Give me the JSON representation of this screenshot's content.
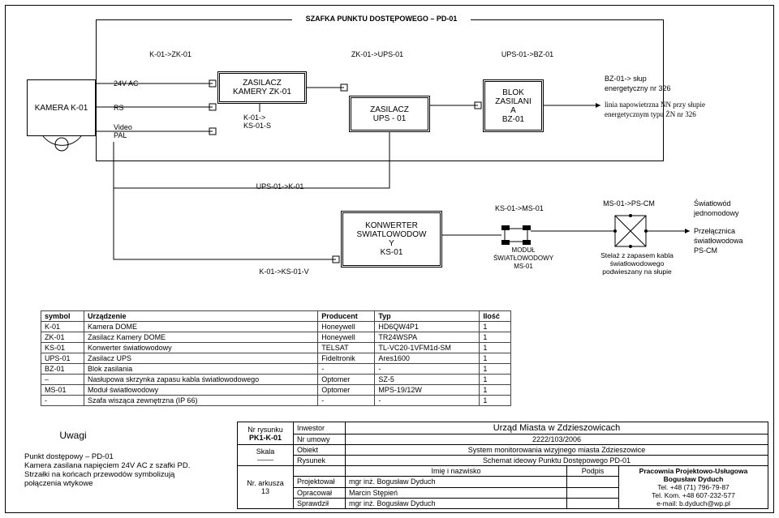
{
  "outer_title": "SZAFKA PUNKTU DOSTĘPOWEGO – PD-01",
  "flows": {
    "a": "K-01->ZK-01",
    "b": "ZK-01->UPS-01",
    "c": "UPS-01->BZ-01",
    "d": "UPS-01->K-01",
    "e": "K-01->KS-01-V",
    "f": "KS-01->MS-01",
    "g": "MS-01->PS-CM",
    "zk_ks": "K-01->\nKS-01-S"
  },
  "camera": {
    "name": "KAMERA K-01",
    "sig1": "24V AC",
    "sig2": "RS",
    "sig3": "Video\nPAL"
  },
  "zk": {
    "l1": "ZASILACZ",
    "l2": "KAMERY ZK-01"
  },
  "ups": {
    "l1": "ZASILACZ",
    "l2": "UPS - 01"
  },
  "bz": {
    "l1": "BLOK",
    "l2": "ZASILANI",
    "l3": "A",
    "l4": "BZ-01"
  },
  "bz_note": {
    "l1": "BZ-01-> słup",
    "l2": "energetyczny nr 326",
    "l3": "linia napowietrzna NN przy słupie",
    "l4": "energetycznym typu ŻN nr 326"
  },
  "ks": {
    "l1": "KONWERTER",
    "l2": "SWIATLOWODOW",
    "l3": "Y",
    "l4": "KS-01"
  },
  "ms": {
    "l1": "MODUŁ",
    "l2": "ŚWIATŁOWODOWY",
    "l3": "MS-01"
  },
  "stelaz": "Stelaż z zapasem kabla\nświatłowodowego\npodwieszany na słupie",
  "ps": {
    "l1": "Światłowód",
    "l2": "jednomodowy",
    "l3": "Przełącznica",
    "l4": "światłowodowa",
    "l5": "PS-CM"
  },
  "parts_header": [
    "symbol",
    "Urządzenie",
    "Producent",
    "Typ",
    "Ilość"
  ],
  "parts": [
    [
      "K-01",
      "Kamera DOME",
      "Honeywell",
      "HD6QW4P1",
      "1"
    ],
    [
      "ZK-01",
      "Zasilacz Kamery DOME",
      "Honeywell",
      "TR24WSPA",
      "1"
    ],
    [
      "KS-01",
      "Konwerter światłowodowy",
      "TELSAT",
      "TL-VC20-1VFM1d-SM",
      "1"
    ],
    [
      "UPS-01",
      "Zasilacz UPS",
      "Fideltronik",
      "Ares1600",
      "1"
    ],
    [
      "BZ-01",
      "Blok zasilania",
      "-",
      "-",
      "1"
    ],
    [
      "–",
      "Nasłupowa skrzynka zapasu kabla światłowodowego",
      "Optomer",
      "SZ-5",
      "1"
    ],
    [
      "MS-01",
      "Moduł światłowodowy",
      "Optomer",
      "MPS-19/12W",
      "1"
    ],
    [
      "-",
      "Szafa wisząca zewnętrzna (IP 66)",
      "-",
      "-",
      "1"
    ]
  ],
  "uwagi_h": "Uwagi",
  "uwagi": "Punkt dostępowy – PD-01\nKamera zasilana napięciem 24V AC z szafki PD.\nStrzałki na końcach przewodów symbolizują\npołączenia wtykowe",
  "title": {
    "nr_rys_l": "Nr rysunku",
    "nr_rys_v": "PK1-K-01",
    "skala_l": "Skala",
    "nr_ark_l": "Nr. arkusza",
    "nr_ark_v": "13",
    "inwestor_l": "Inwestor",
    "inwestor_v": "Urząd Miasta w Zdzieszowicach",
    "nr_um_l": "Nr umowy",
    "nr_um_v": "2222/103/2006",
    "obiekt_l": "Obiekt",
    "obiekt_v": "System monitorowania wizyjnego miasta Zdzieszowice",
    "rys_l": "Rysunek",
    "rys_v": "Schemat ideowy Punktu Dostępowego PD-01",
    "imie_l": "Imię i nazwisko",
    "podpis_l": "Podpis",
    "proj_l": "Projektował",
    "proj_v": "mgr inż. Bogusław Dyduch",
    "opr_l": "Opracował",
    "opr_v": "Marcin Stępień",
    "spr_l": "Sprawdził",
    "spr_v": "mgr inż. Bogusław Dyduch",
    "firm1": "Pracownia Projektowo-Usługowa",
    "firm2": "Bogusław Dyduch",
    "firm3": "Tel. +48 (71) 796-79-87",
    "firm4": "Tel. Kom. +48 607-232-577",
    "firm5": "e-mail: b.dyduch@wp.pl"
  }
}
